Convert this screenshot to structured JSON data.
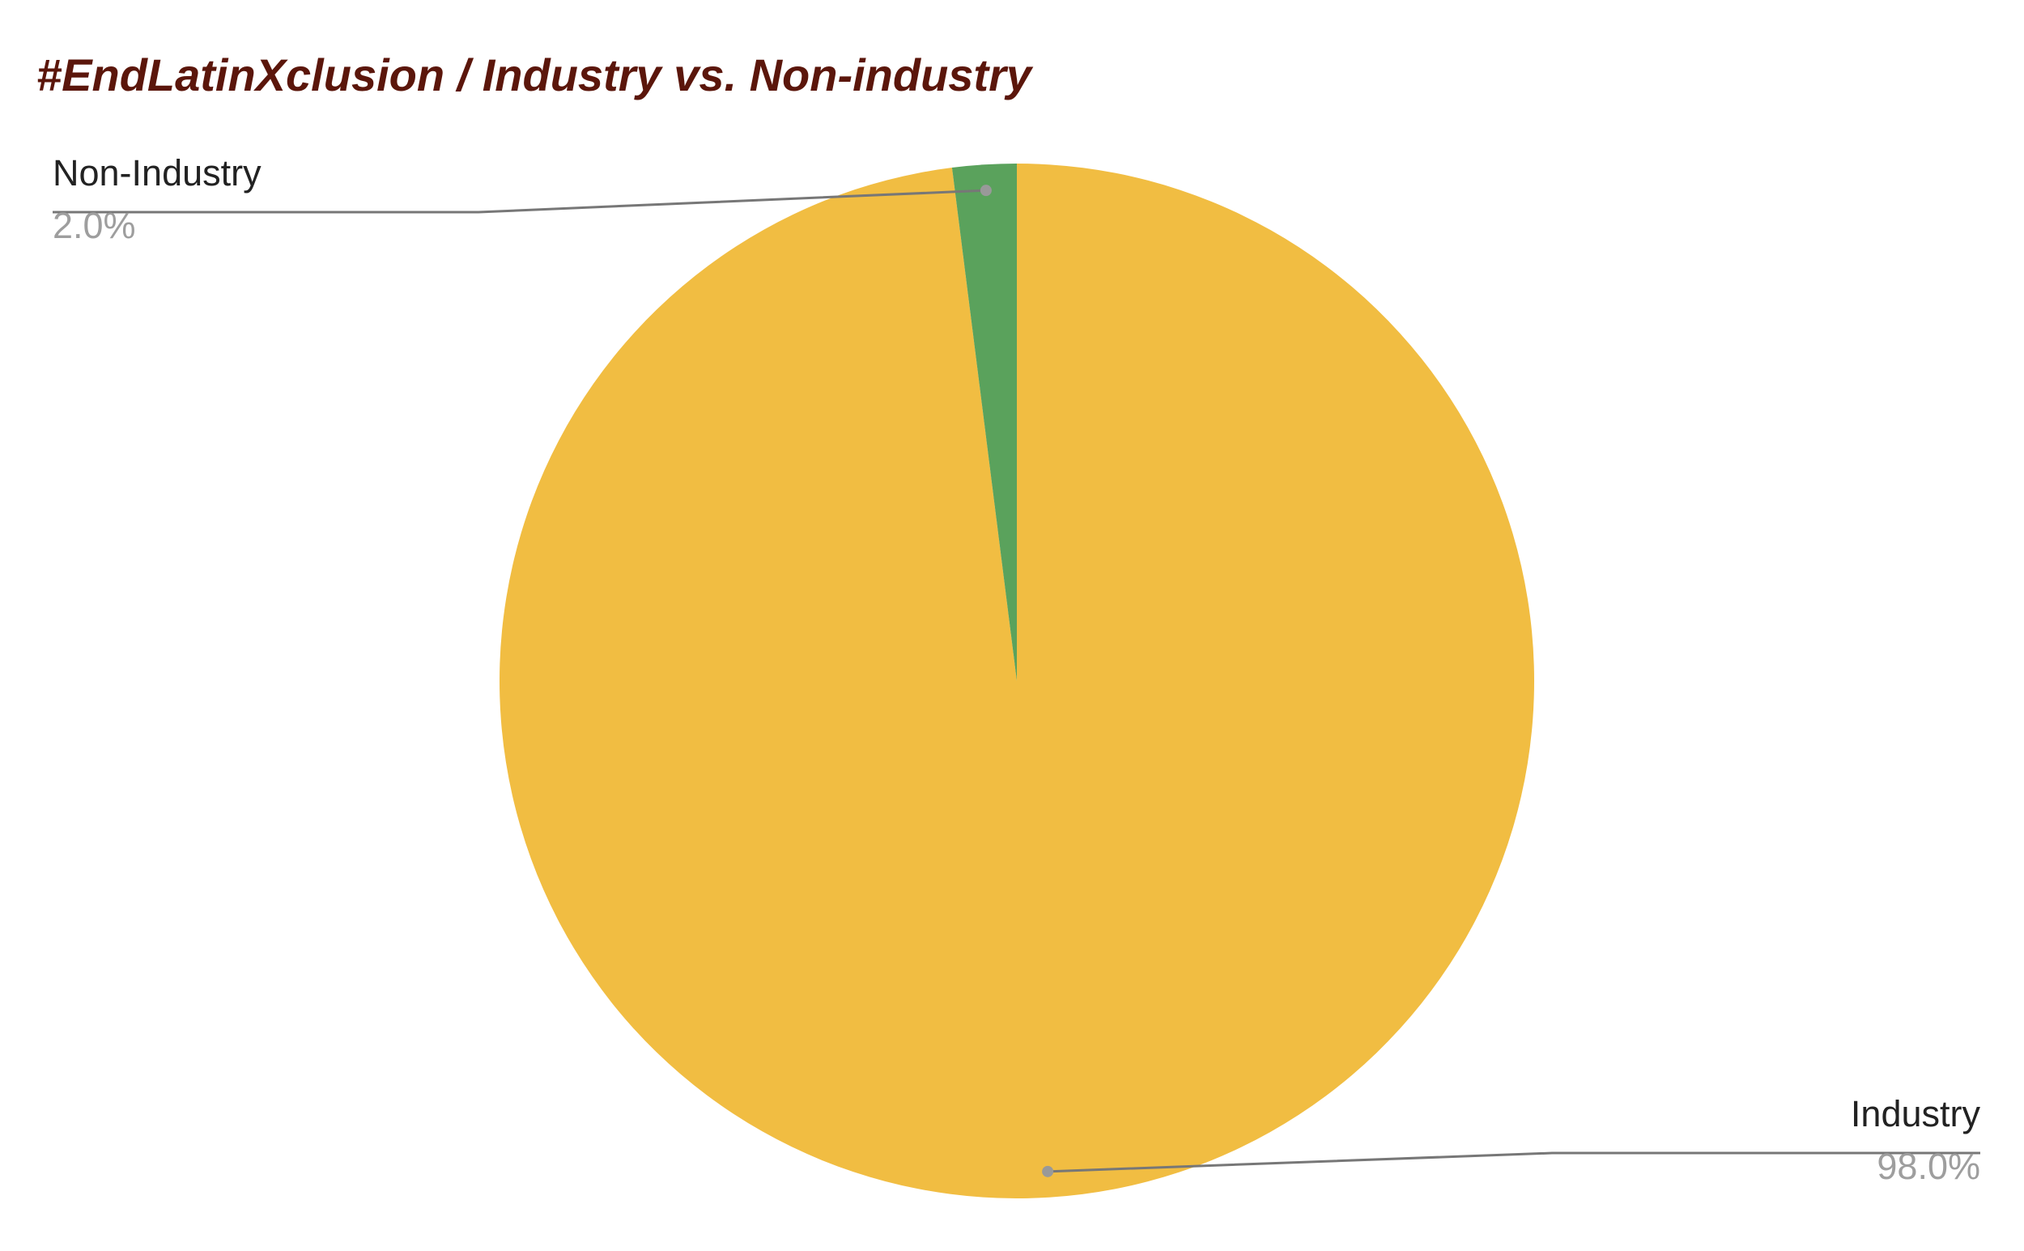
{
  "chart_data": {
    "type": "pie",
    "title": "#EndLatinXclusion / Industry vs. Non-industry",
    "categories": [
      "Industry",
      "Non-Industry"
    ],
    "values": [
      98,
      2
    ],
    "value_labels": [
      "98.0%",
      "2.0%"
    ],
    "colors": [
      "#f1bd42",
      "#5aa25c"
    ]
  }
}
